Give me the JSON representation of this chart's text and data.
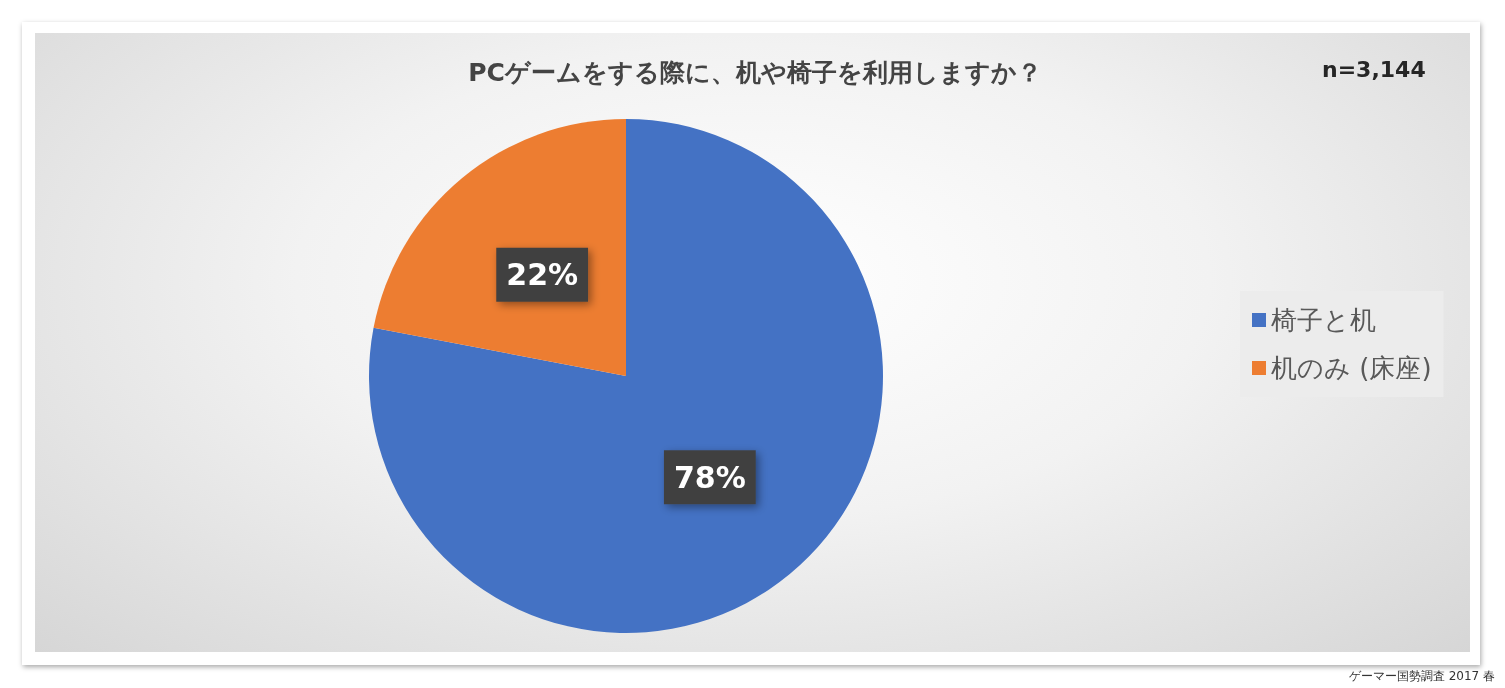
{
  "chart_data": {
    "type": "pie",
    "title": "PCゲームをする際に、机や椅子を利用しますか？",
    "categories": [
      "椅子と机",
      "机のみ (床座)"
    ],
    "values": [
      78,
      22
    ],
    "colors": [
      "#4472c4",
      "#ed7d31"
    ],
    "value_labels": [
      "78%",
      "22%"
    ],
    "legend": "right",
    "annotations": [
      "n=3,144",
      "ゲーマー国勢調査 2017 春"
    ]
  }
}
